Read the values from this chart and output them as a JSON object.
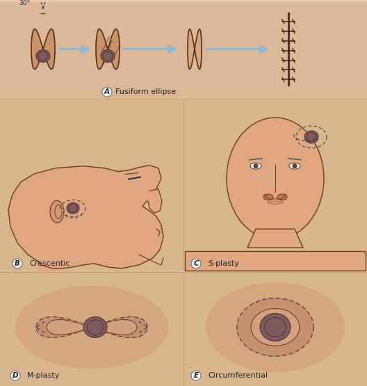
{
  "bg_color": "#e8c9a8",
  "panel_bg_A": "#deb99a",
  "panel_bg_BC": "#deb99a",
  "panel_bg_DE": "#deb99a",
  "skin_face": "#e0a882",
  "skin_mid": "#cc8f6a",
  "skin_shade": "#c07a55",
  "lesion_color": "#7a5c5c",
  "lesion_edge": "#5a3030",
  "outline_color": "#6a4020",
  "dashed_color": "#444444",
  "arrow_color": "#8ab8d8",
  "suture_color": "#4a2a10",
  "angle_label": "30°",
  "panel_A_text": "Fusiform ellipse",
  "panel_B_text": "Crescentic",
  "panel_C_text": "S-plasty",
  "panel_D_text": "M-plasty",
  "panel_E_text": "Circumferential",
  "fig_w": 5.28,
  "fig_h": 5.55,
  "dpi": 100
}
